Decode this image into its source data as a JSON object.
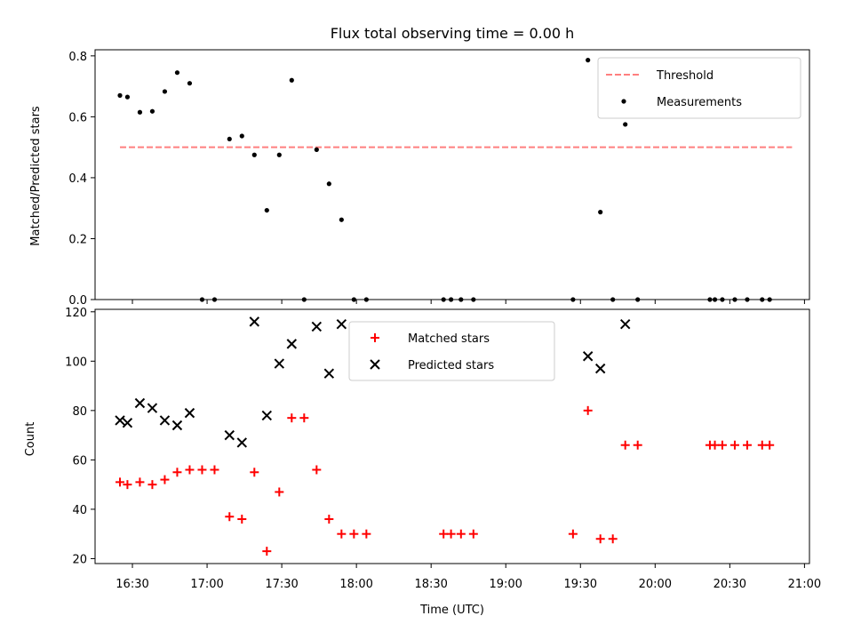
{
  "chart_data": [
    {
      "type": "scatter",
      "title": "Flux total observing time = 0.00 h",
      "xlabel": "",
      "ylabel": "Matched/Predicted stars",
      "xlim": [
        "16:15",
        "21:02"
      ],
      "ylim": [
        0,
        0.82
      ],
      "yticks": [
        0.0,
        0.2,
        0.4,
        0.6,
        0.8
      ],
      "ytick_labels": [
        "0.0",
        "0.2",
        "0.4",
        "0.6",
        "0.8"
      ],
      "grid": false,
      "legend_position": "top-right",
      "threshold": {
        "name": "Threshold",
        "value": 0.5,
        "x_start": "16:25",
        "x_end": "20:55",
        "color": "#ff7f7f",
        "style": "dashed"
      },
      "series": [
        {
          "name": "Measurements",
          "color": "#000000",
          "marker": "dot",
          "points": [
            [
              "16:25",
              0.67
            ],
            [
              "16:28",
              0.665
            ],
            [
              "16:33",
              0.615
            ],
            [
              "16:38",
              0.618
            ],
            [
              "16:43",
              0.683
            ],
            [
              "16:48",
              0.745
            ],
            [
              "16:53",
              0.71
            ],
            [
              "16:58",
              0.0
            ],
            [
              "17:03",
              0.0
            ],
            [
              "17:09",
              0.527
            ],
            [
              "17:14",
              0.537
            ],
            [
              "17:19",
              0.475
            ],
            [
              "17:24",
              0.293
            ],
            [
              "17:29",
              0.475
            ],
            [
              "17:34",
              0.72
            ],
            [
              "17:39",
              0.0
            ],
            [
              "17:44",
              0.492
            ],
            [
              "17:49",
              0.38
            ],
            [
              "17:54",
              0.262
            ],
            [
              "17:59",
              0.0
            ],
            [
              "18:04",
              0.0
            ],
            [
              "18:35",
              0.0
            ],
            [
              "18:38",
              0.0
            ],
            [
              "18:42",
              0.0
            ],
            [
              "18:47",
              0.0
            ],
            [
              "19:27",
              0.0
            ],
            [
              "19:33",
              0.786
            ],
            [
              "19:38",
              0.287
            ],
            [
              "19:43",
              0.0
            ],
            [
              "19:48",
              0.575
            ],
            [
              "19:53",
              0.0
            ],
            [
              "20:22",
              0.0
            ],
            [
              "20:24",
              0.0
            ],
            [
              "20:27",
              0.0
            ],
            [
              "20:32",
              0.0
            ],
            [
              "20:37",
              0.0
            ],
            [
              "20:43",
              0.0
            ],
            [
              "20:46",
              0.0
            ]
          ]
        }
      ]
    },
    {
      "type": "scatter",
      "title": "",
      "xlabel": "Time (UTC)",
      "ylabel": "Count",
      "xlim": [
        "16:15",
        "21:02"
      ],
      "ylim": [
        18,
        121
      ],
      "xticks": [
        "16:30",
        "17:00",
        "17:30",
        "18:00",
        "18:30",
        "19:00",
        "19:30",
        "20:00",
        "20:30",
        "21:00"
      ],
      "yticks": [
        20,
        40,
        60,
        80,
        100,
        120
      ],
      "ytick_labels": [
        "20",
        "40",
        "60",
        "80",
        "100",
        "120"
      ],
      "grid": false,
      "legend_position": "top-center",
      "series": [
        {
          "name": "Matched stars",
          "color": "#ff0000",
          "marker": "plus",
          "points": [
            [
              "16:25",
              51
            ],
            [
              "16:28",
              50
            ],
            [
              "16:33",
              51
            ],
            [
              "16:38",
              50
            ],
            [
              "16:43",
              52
            ],
            [
              "16:48",
              55
            ],
            [
              "16:53",
              56
            ],
            [
              "16:58",
              56
            ],
            [
              "17:03",
              56
            ],
            [
              "17:09",
              37
            ],
            [
              "17:14",
              36
            ],
            [
              "17:19",
              55
            ],
            [
              "17:24",
              23
            ],
            [
              "17:29",
              47
            ],
            [
              "17:34",
              77
            ],
            [
              "17:39",
              77
            ],
            [
              "17:44",
              56
            ],
            [
              "17:49",
              36
            ],
            [
              "17:54",
              30
            ],
            [
              "17:59",
              30
            ],
            [
              "18:04",
              30
            ],
            [
              "18:35",
              30
            ],
            [
              "18:38",
              30
            ],
            [
              "18:42",
              30
            ],
            [
              "18:47",
              30
            ],
            [
              "19:27",
              30
            ],
            [
              "19:33",
              80
            ],
            [
              "19:38",
              28
            ],
            [
              "19:43",
              28
            ],
            [
              "19:48",
              66
            ],
            [
              "19:53",
              66
            ],
            [
              "20:22",
              66
            ],
            [
              "20:24",
              66
            ],
            [
              "20:27",
              66
            ],
            [
              "20:32",
              66
            ],
            [
              "20:37",
              66
            ],
            [
              "20:43",
              66
            ],
            [
              "20:46",
              66
            ]
          ]
        },
        {
          "name": "Predicted stars",
          "color": "#000000",
          "marker": "x",
          "points": [
            [
              "16:25",
              76
            ],
            [
              "16:28",
              75
            ],
            [
              "16:33",
              83
            ],
            [
              "16:38",
              81
            ],
            [
              "16:43",
              76
            ],
            [
              "16:48",
              74
            ],
            [
              "16:53",
              79
            ],
            [
              "17:09",
              70
            ],
            [
              "17:14",
              67
            ],
            [
              "17:19",
              116
            ],
            [
              "17:24",
              78
            ],
            [
              "17:29",
              99
            ],
            [
              "17:34",
              107
            ],
            [
              "17:44",
              114
            ],
            [
              "17:49",
              95
            ],
            [
              "17:54",
              115
            ],
            [
              "19:33",
              102
            ],
            [
              "19:38",
              97
            ],
            [
              "19:48",
              115
            ]
          ]
        }
      ]
    }
  ]
}
